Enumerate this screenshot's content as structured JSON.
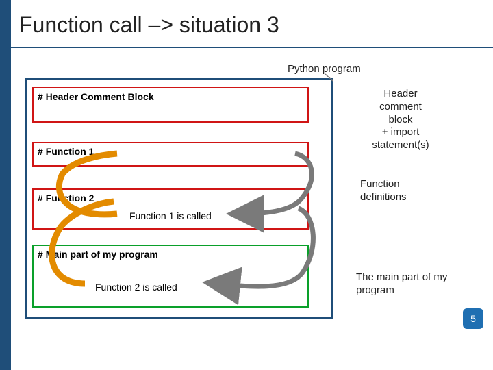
{
  "slide": {
    "title": "Function call –> situation 3",
    "page_number": "5",
    "accent_color": "#1f4e79",
    "page_badge_bg": "#1f6fb2"
  },
  "labels": {
    "python_program": "Python program"
  },
  "program_box": {
    "border_color": "#1f4e79",
    "header_block": {
      "text": "# Header Comment Block",
      "border_color": "#d01515"
    },
    "func1_block": {
      "text": "# Function 1",
      "border_color": "#d01515"
    },
    "func2_block": {
      "text": "# Function 2",
      "call_text": "Function 1 is called",
      "border_color": "#d01515"
    },
    "main_block": {
      "text": "# Main part of my program",
      "call_text": "Function 2 is called",
      "border_color": "#0aa02a"
    }
  },
  "annotations": {
    "header": "Header\ncomment\nblock\n+ import\nstatement(s)",
    "func_defs": "Function\ndefinitions",
    "main": "The main part of my\nprogram"
  },
  "arrows": {
    "color_orange": "#e38b00",
    "color_grey": "#7a7a7a",
    "width_thick": 9,
    "width_thin": 7
  }
}
